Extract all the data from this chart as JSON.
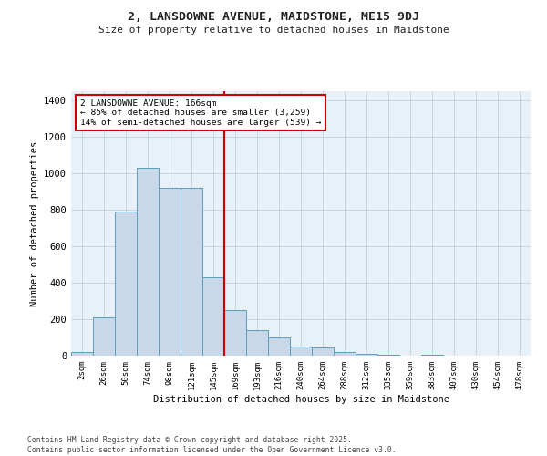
{
  "title": "2, LANSDOWNE AVENUE, MAIDSTONE, ME15 9DJ",
  "subtitle": "Size of property relative to detached houses in Maidstone",
  "xlabel": "Distribution of detached houses by size in Maidstone",
  "ylabel": "Number of detached properties",
  "bar_labels": [
    "2sqm",
    "26sqm",
    "50sqm",
    "74sqm",
    "98sqm",
    "121sqm",
    "145sqm",
    "169sqm",
    "193sqm",
    "216sqm",
    "240sqm",
    "264sqm",
    "288sqm",
    "312sqm",
    "335sqm",
    "359sqm",
    "383sqm",
    "407sqm",
    "430sqm",
    "454sqm",
    "478sqm"
  ],
  "bar_values": [
    20,
    210,
    790,
    1030,
    920,
    920,
    430,
    250,
    140,
    100,
    50,
    45,
    20,
    12,
    5,
    0,
    5,
    0,
    0,
    0,
    0
  ],
  "bar_color": "#c8d8e8",
  "bar_edge_color": "#5a9fc0",
  "vline_color": "#cc0000",
  "annotation_title": "2 LANSDOWNE AVENUE: 166sqm",
  "annotation_line1": "← 85% of detached houses are smaller (3,259)",
  "annotation_line2": "14% of semi-detached houses are larger (539) →",
  "annotation_box_color": "#ffffff",
  "annotation_box_edge": "#cc0000",
  "ylim": [
    0,
    1450
  ],
  "yticks": [
    0,
    200,
    400,
    600,
    800,
    1000,
    1200,
    1400
  ],
  "grid_color": "#c8d4de",
  "background_color": "#e8f0f8",
  "footer_line1": "Contains HM Land Registry data © Crown copyright and database right 2025.",
  "footer_line2": "Contains public sector information licensed under the Open Government Licence v3.0."
}
